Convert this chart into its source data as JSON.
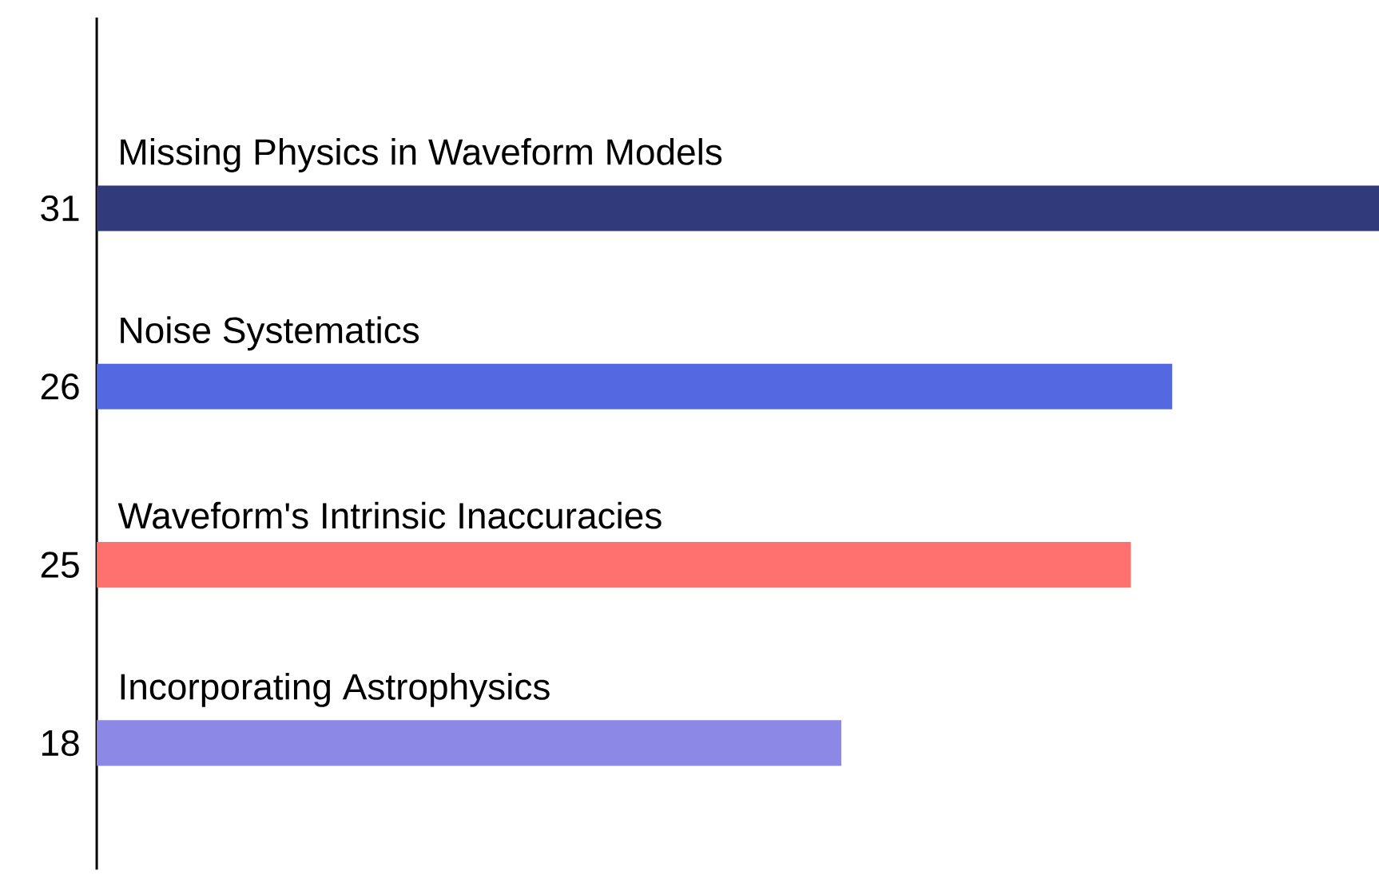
{
  "chart_data": {
    "type": "bar",
    "orientation": "horizontal",
    "data_labels": true,
    "categories": [
      "Missing Physics in Waveform Models",
      "Noise Systematics",
      "Waveform's Intrinsic Inaccuracies",
      "Incorporating Astrophysics"
    ],
    "values": [
      31,
      26,
      25,
      18
    ],
    "colors": [
      "#313a7a",
      "#5468e2",
      "#fe716e",
      "#8b88e6"
    ]
  }
}
